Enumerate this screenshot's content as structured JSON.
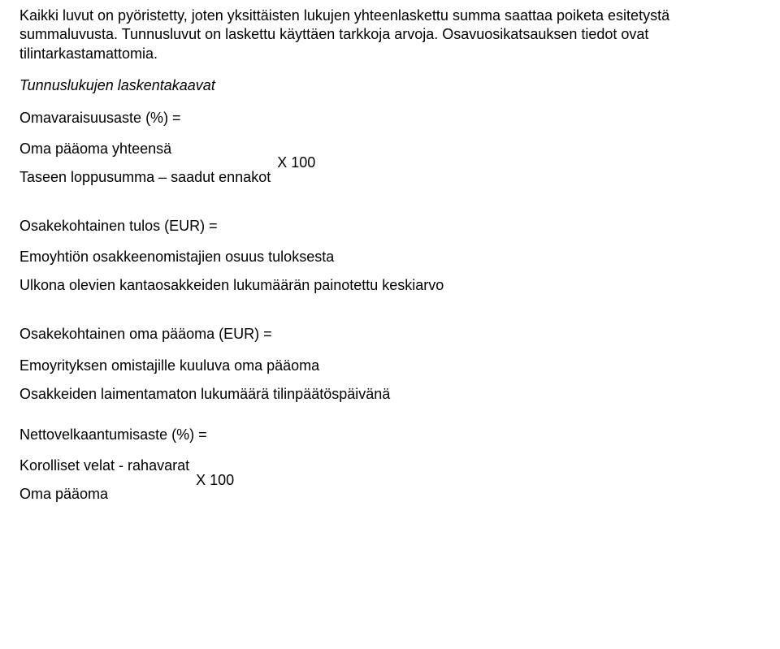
{
  "fontSizePx": 18,
  "textColor": "#000000",
  "intro": {
    "p1": "Kaikki luvut on pyöristetty, joten yksittäisten lukujen yhteenlaskettu summa saattaa poiketa esitetystä summaluvusta. Tunnusluvut on laskettu käyttäen tarkkoja arvoja. Osavuosikatsauksen tiedot ovat tilintarkastamattomia.",
    "p2": "Tunnuslukujen laskentakaavat"
  },
  "formulas": {
    "f1": {
      "title": "Omavaraisuusaste (%) =",
      "num": "Oma pääoma yhteensä",
      "den": "Taseen loppusumma – saadut ennakot",
      "mult": "X 100"
    },
    "f2": {
      "title": "Osakekohtainen tulos (EUR) =",
      "num": "Emoyhtiön osakkeenomistajien osuus tuloksesta",
      "den": "Ulkona olevien kantaosakkeiden lukumäärän painotettu keskiarvo"
    },
    "f3": {
      "title": "Osakekohtainen oma pääoma (EUR) =",
      "num": "Emoyrityksen omistajille kuuluva oma pääoma",
      "den": "Osakkeiden laimentamaton lukumäärä tilinpäätöspäivänä"
    },
    "f4": {
      "title": "Nettovelkaantumisaste (%) =",
      "num": "Korolliset velat - rahavarat",
      "den": "Oma pääoma",
      "mult": "X 100"
    }
  }
}
